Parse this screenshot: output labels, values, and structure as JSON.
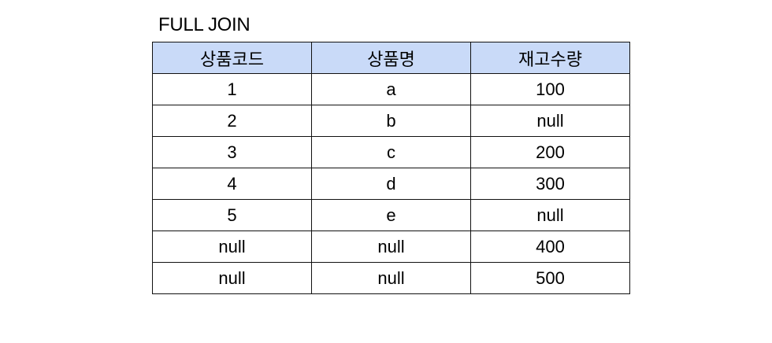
{
  "title": "FULL JOIN",
  "table": {
    "headers": [
      "상품코드",
      "상품명",
      "재고수량"
    ],
    "rows": [
      [
        "1",
        "a",
        "100"
      ],
      [
        "2",
        "b",
        "null"
      ],
      [
        "3",
        "c",
        "200"
      ],
      [
        "4",
        "d",
        "300"
      ],
      [
        "5",
        "e",
        "null"
      ],
      [
        "null",
        "null",
        "400"
      ],
      [
        "null",
        "null",
        "500"
      ]
    ]
  },
  "colors": {
    "header_background": "#c9daf8",
    "border": "#111111",
    "text": "#000000",
    "page_background": "#ffffff"
  }
}
